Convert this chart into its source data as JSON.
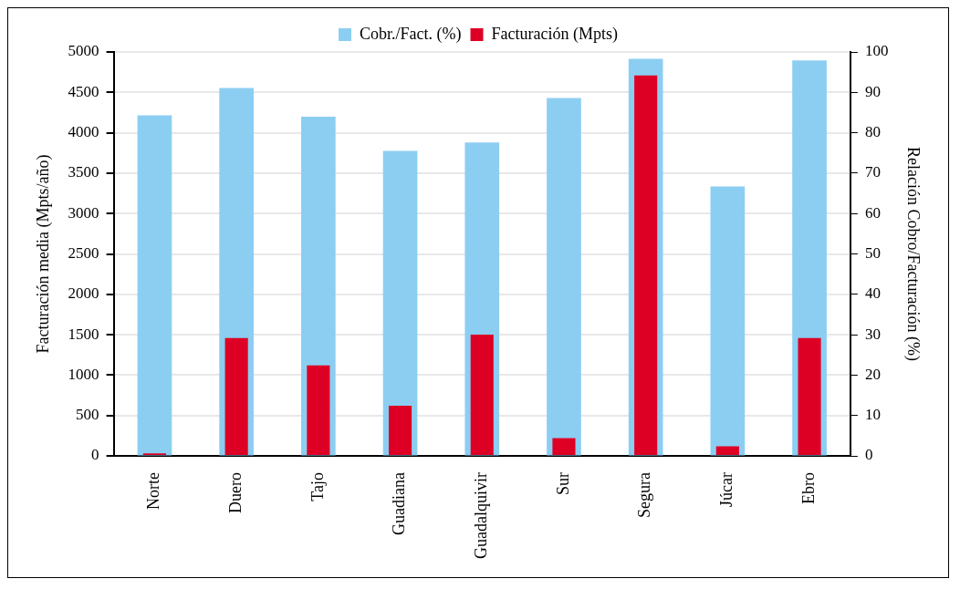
{
  "chart_data": {
    "type": "bar",
    "categories": [
      "Norte",
      "Duero",
      "Tajo",
      "Guadiana",
      "Guadalquivir",
      "Sur",
      "Segura",
      "Júcar",
      "Ebro"
    ],
    "series": [
      {
        "name": "Cobr./Fact. (%)",
        "color": "#8ccef2",
        "axis": "y2",
        "values": [
          84.3,
          91.1,
          84.0,
          75.5,
          77.6,
          88.6,
          98.3,
          66.7,
          97.9
        ]
      },
      {
        "name": "Facturación (Mpts)",
        "color": "#de0024",
        "values": [
          30,
          1460,
          1120,
          620,
          1500,
          220,
          4710,
          120,
          1460
        ]
      }
    ],
    "ylabel": "Facturación media (Mpts/año)",
    "y2label": "Relación Cobro/Facturación (%)",
    "ylim": [
      0,
      5000
    ],
    "yticks": [
      0,
      500,
      1000,
      1500,
      2000,
      2500,
      3000,
      3500,
      4000,
      4500,
      5000
    ],
    "y2lim": [
      0,
      100
    ],
    "y2ticks": [
      0,
      10,
      20,
      30,
      40,
      50,
      60,
      70,
      80,
      90,
      100
    ],
    "grid": "y",
    "legend": "top"
  }
}
